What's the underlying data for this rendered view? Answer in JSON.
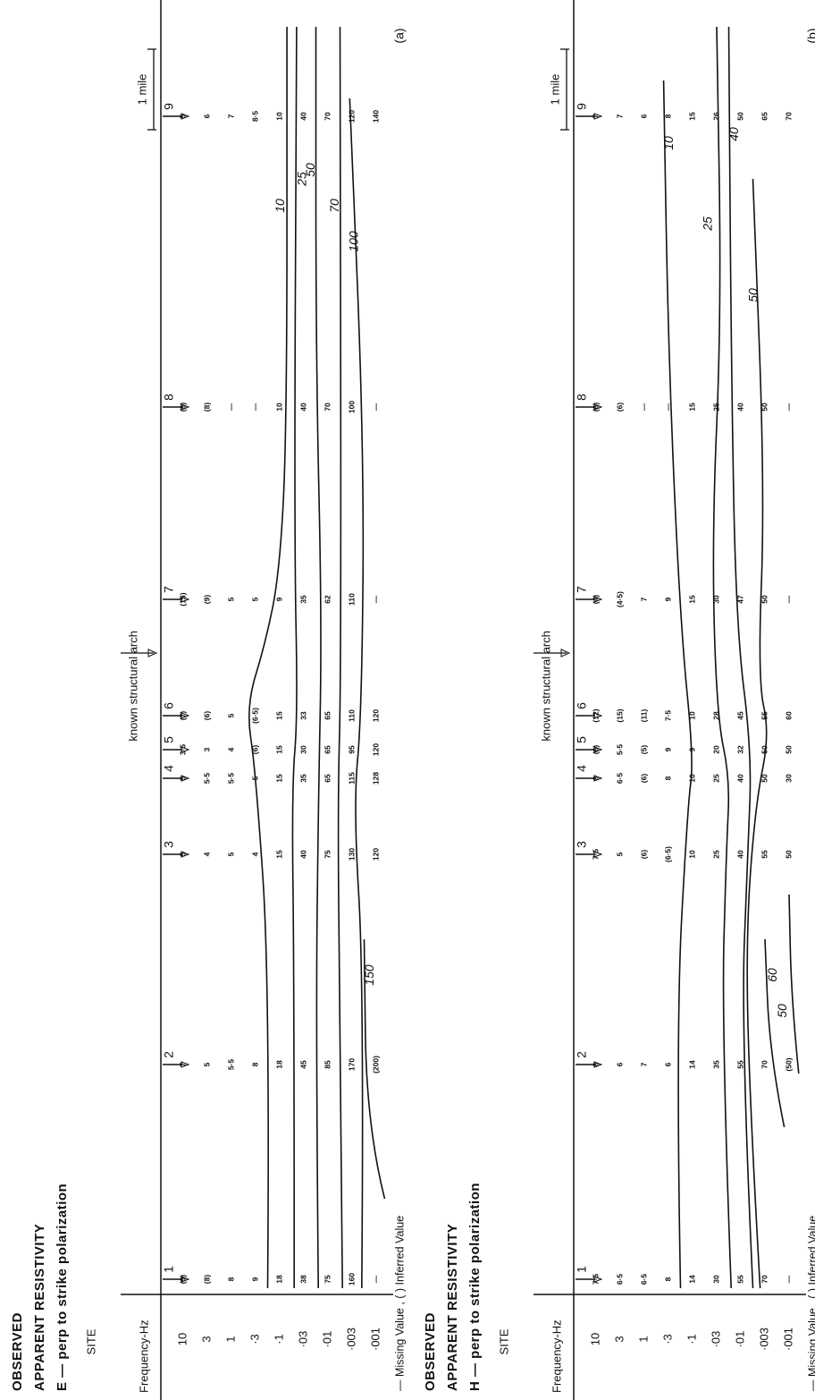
{
  "panels": [
    {
      "title": [
        "OBSERVED",
        "APPARENT  RESISTIVITY",
        "E — perp to strike polarization"
      ],
      "site_header": "SITE",
      "frequency_header": "Frequency-Hz",
      "sites": [
        "1",
        "2",
        "3",
        "4",
        "5",
        "6",
        "7",
        "8",
        "9"
      ],
      "frequencies": [
        "10",
        "3",
        "1",
        "·3",
        "·1",
        "·03",
        "·01",
        "·003",
        "·001"
      ],
      "rows": [
        [
          "(9)",
          "7",
          "5",
          "5",
          "3·5",
          "(7)",
          "(15)",
          "(8)",
          "5"
        ],
        [
          "(8)",
          "5",
          "4",
          "5·5",
          "3",
          "(6)",
          "(9)",
          "(8)",
          "6"
        ],
        [
          "8",
          "5·5",
          "5",
          "5·5",
          "4",
          "5",
          "5",
          "—",
          "7"
        ],
        [
          "9",
          "8",
          "4",
          "5",
          "(6)",
          "(6·5)",
          "5",
          "—",
          "8·5"
        ],
        [
          "18",
          "18",
          "15",
          "15",
          "15",
          "15",
          "9",
          "10",
          "10"
        ],
        [
          "38",
          "45",
          "40",
          "35",
          "30",
          "33",
          "35",
          "40",
          "40"
        ],
        [
          "75",
          "85",
          "75",
          "65",
          "65",
          "65",
          "62",
          "70",
          "70"
        ],
        [
          "160",
          "170",
          "130",
          "115",
          "95",
          "110",
          "110",
          "100",
          "120"
        ],
        [
          "—",
          "(200)",
          "120",
          "128",
          "120",
          "120",
          "—",
          "—",
          "140"
        ]
      ],
      "contour_labels": [
        "10",
        "25",
        "50",
        "70",
        "100",
        "150"
      ],
      "arch_label": "known  structural  arch",
      "scale_label": "1 mile",
      "legend": "— Missing Value ,  (  ) Inferred  Value",
      "panel_label": "(a)"
    },
    {
      "title": [
        "OBSERVED",
        "APPARENT  RESISTIVITY",
        "H — perp to strike polarization"
      ],
      "site_header": "SITE",
      "frequency_header": "Frequency-Hz",
      "sites": [
        "1",
        "2",
        "3",
        "4",
        "5",
        "6",
        "7",
        "8",
        "9"
      ],
      "frequencies": [
        "10",
        "3",
        "1",
        "·3",
        "·1",
        "·03",
        "·01",
        "·003",
        "·001"
      ],
      "rows": [
        [
          "7·5",
          "8",
          "7·5",
          "8",
          "(6)",
          "(12)",
          "(4)",
          "(6)",
          "7"
        ],
        [
          "6·5",
          "6",
          "5",
          "6·5",
          "5·5",
          "(15)",
          "(4·5)",
          "(6)",
          "7"
        ],
        [
          "6·5",
          "7",
          "(6)",
          "(6)",
          "(5)",
          "(11)",
          "7",
          "—",
          "6"
        ],
        [
          "8",
          "6",
          "(6·5)",
          "8",
          "9",
          "7·5",
          "9",
          "—",
          "8"
        ],
        [
          "14",
          "14",
          "10",
          "10",
          "9",
          "10",
          "15",
          "15",
          "15"
        ],
        [
          "30",
          "35",
          "25",
          "25",
          "20",
          "28",
          "30",
          "25",
          "26"
        ],
        [
          "55",
          "55",
          "40",
          "40",
          "32",
          "45",
          "47",
          "40",
          "50"
        ],
        [
          "70",
          "70",
          "55",
          "50",
          "50",
          "55",
          "50",
          "50",
          "65"
        ],
        [
          "—",
          "(50)",
          "50",
          "30",
          "50",
          "60",
          "—",
          "—",
          "70"
        ]
      ],
      "contour_labels": [
        "10",
        "25",
        "40",
        "50",
        "60",
        "50"
      ],
      "arch_label": "known  structural  arch",
      "scale_label": "1 mile",
      "legend": "— Missing Value ,  (  ) Inferred  Value",
      "panel_label": "(b)"
    }
  ]
}
